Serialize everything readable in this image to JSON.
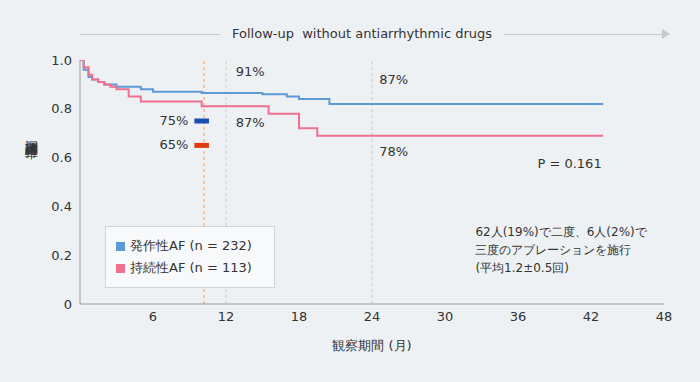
{
  "chart_data": {
    "type": "line",
    "line_style": "step",
    "banner": "Follow-up  without antiarrhythmic drugs",
    "y_label": "洞調律維持率",
    "x_label": "観察期間 (月)",
    "xlim": [
      0,
      48
    ],
    "xticks": [
      6,
      12,
      18,
      24,
      30,
      36,
      42,
      48
    ],
    "ylim": [
      0,
      1
    ],
    "yticks": [
      0,
      0.2,
      0.4,
      0.6,
      0.8,
      {
        "value": 1,
        "label": "1.0"
      }
    ],
    "grid": false,
    "x": [
      0,
      0.3,
      0.7,
      1,
      1.5,
      2,
      2.5,
      3,
      4,
      5,
      6,
      10,
      15,
      15.5,
      17,
      18,
      19.5,
      20.5,
      43
    ],
    "series": [
      {
        "name": "発作性AF (n = 232)",
        "color": "#5b9ad6",
        "values": [
          1.0,
          0.96,
          0.93,
          0.92,
          0.91,
          0.9,
          0.9,
          0.89,
          0.89,
          0.88,
          0.87,
          0.865,
          0.86,
          0.86,
          0.85,
          0.84,
          0.84,
          0.82,
          0.82
        ]
      },
      {
        "name": "持続性AF (n = 113)",
        "color": "#f0708f",
        "values": [
          1.0,
          0.97,
          0.94,
          0.92,
          0.91,
          0.9,
          0.89,
          0.88,
          0.85,
          0.83,
          0.83,
          0.81,
          0.81,
          0.78,
          0.78,
          0.72,
          0.69,
          0.69,
          0.69
        ]
      }
    ],
    "reference_lines": [
      {
        "x": 10.2,
        "color": "#f0a060"
      },
      {
        "x": 12,
        "color": "#c8c8c8"
      },
      {
        "x": 24,
        "color": "#c8c8c8"
      }
    ],
    "markers": [
      {
        "label": "75%",
        "value": 0.75,
        "x": [
          9.4,
          10.6
        ],
        "color": "#1a4db3"
      },
      {
        "label": "65%",
        "value": 0.65,
        "x": [
          9.4,
          10.6
        ],
        "color": "#e03a10"
      }
    ],
    "annotations": [
      {
        "text": "91%",
        "x": 12.8,
        "y": 0.947
      },
      {
        "text": "87%",
        "x": 24.6,
        "y": 0.918
      },
      {
        "text": "87%",
        "x": 12.8,
        "y": 0.738
      },
      {
        "text": "78%",
        "x": 24.6,
        "y": 0.62
      },
      {
        "text": "P = 0.161",
        "x": 37.6,
        "y": 0.57
      }
    ],
    "note": {
      "lines": [
        "62人(19%)で二度、6人(2%)で",
        "三度のアブレーションを施行",
        "(平均1.2±0.5回)"
      ],
      "x": 32.5,
      "y": 0.295
    }
  }
}
